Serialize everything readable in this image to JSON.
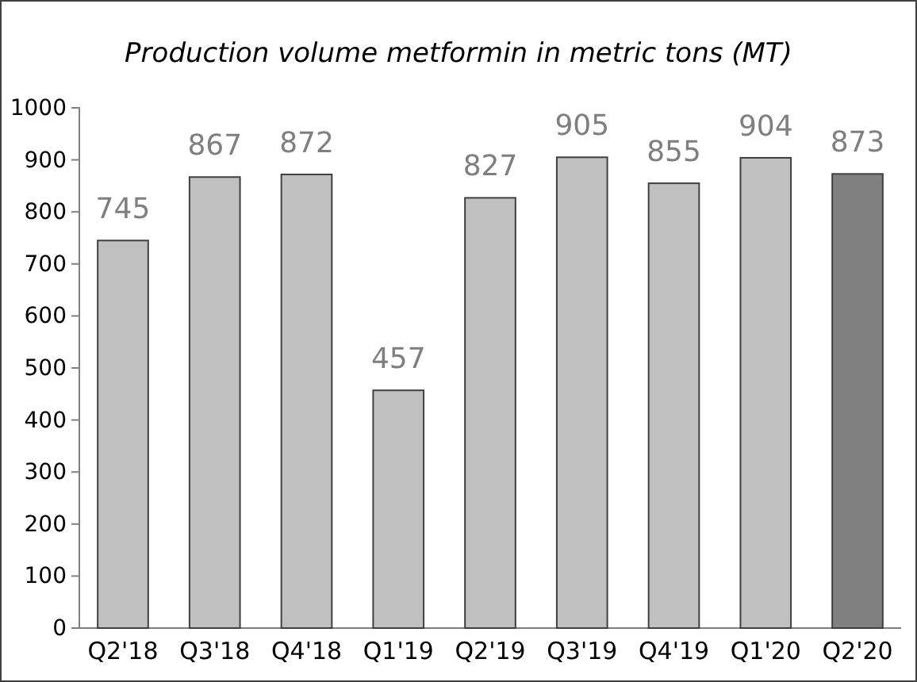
{
  "chart_data": {
    "type": "bar",
    "title": "Production volume metformin in metric tons (MT)",
    "categories": [
      "Q2'18",
      "Q3'18",
      "Q4'18",
      "Q1'19",
      "Q2'19",
      "Q3'19",
      "Q4'19",
      "Q1'20",
      "Q2'20"
    ],
    "values": [
      745,
      867,
      872,
      457,
      827,
      905,
      855,
      904,
      873
    ],
    "colors": [
      "#c0c0c0",
      "#c0c0c0",
      "#c0c0c0",
      "#c0c0c0",
      "#c0c0c0",
      "#c0c0c0",
      "#c0c0c0",
      "#c0c0c0",
      "#808080"
    ],
    "ylim": [
      0,
      1000
    ],
    "yticks": [
      0,
      100,
      200,
      300,
      400,
      500,
      600,
      700,
      800,
      900,
      1000
    ],
    "data_labels": true,
    "grid": false
  }
}
